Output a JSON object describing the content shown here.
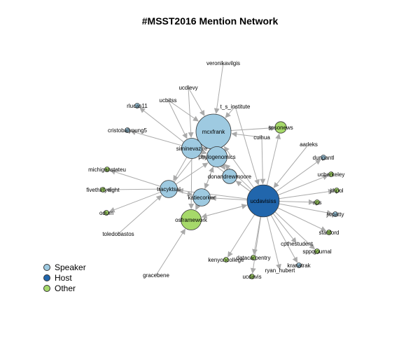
{
  "title": "#MSST2016 Mention Network",
  "colors": {
    "speaker": "#9ecae1",
    "host": "#2166ac",
    "other": "#a6d96a",
    "edge": "#aaaaaa",
    "stroke": "#333333"
  },
  "legend": [
    {
      "label": "Speaker",
      "group": "speaker"
    },
    {
      "label": "Host",
      "group": "host"
    },
    {
      "label": "Other",
      "group": "other"
    }
  ],
  "nodes": [
    {
      "id": "mcxfrank",
      "group": "speaker",
      "weight": 10
    },
    {
      "id": "ucdavisiss",
      "group": "host",
      "weight": 9
    },
    {
      "id": "siminevazire",
      "group": "speaker",
      "weight": 5
    },
    {
      "id": "phylogenomics",
      "group": "speaker",
      "weight": 5
    },
    {
      "id": "osframework",
      "group": "other",
      "weight": 5
    },
    {
      "id": "tracyktsal",
      "group": "speaker",
      "weight": 4
    },
    {
      "id": "katiecorker",
      "group": "speaker",
      "weight": 4
    },
    {
      "id": "donandrewmoore",
      "group": "speaker",
      "weight": 3
    },
    {
      "id": "spsonews",
      "group": "other",
      "weight": 2
    },
    {
      "id": "veronikavilgis",
      "group": "other",
      "weight": 0
    },
    {
      "id": "ucdlevy",
      "group": "other",
      "weight": 0
    },
    {
      "id": "ucbitss",
      "group": "other",
      "weight": 0
    },
    {
      "id": "t_s_institute",
      "group": "other",
      "weight": 0
    },
    {
      "id": "rlucas11",
      "group": "speaker",
      "weight": 1
    },
    {
      "id": "cristobalyoung5",
      "group": "speaker",
      "weight": 1
    },
    {
      "id": "cuihua",
      "group": "other",
      "weight": 0
    },
    {
      "id": "aarleks",
      "group": "other",
      "weight": 0
    },
    {
      "id": "dunpantl",
      "group": "speaker",
      "weight": 1
    },
    {
      "id": "michiganstateu",
      "group": "other",
      "weight": 1
    },
    {
      "id": "ucberkeley",
      "group": "other",
      "weight": 1
    },
    {
      "id": "fivethirtyeight",
      "group": "other",
      "weight": 1
    },
    {
      "id": "jthpol",
      "group": "other",
      "weight": 1
    },
    {
      "id": "odum",
      "group": "other",
      "weight": 1
    },
    {
      "id": "aps",
      "group": "other",
      "weight": 1
    },
    {
      "id": "jwpatty",
      "group": "speaker",
      "weight": 1
    },
    {
      "id": "toledobastos",
      "group": "other",
      "weight": 0
    },
    {
      "id": "stanford",
      "group": "other",
      "weight": 1
    },
    {
      "id": "cpthestudent",
      "group": "other",
      "weight": 0
    },
    {
      "id": "sppqjournal",
      "group": "other",
      "weight": 1
    },
    {
      "id": "datacarpentry",
      "group": "other",
      "weight": 1
    },
    {
      "id": "kenyoncollege",
      "group": "other",
      "weight": 1
    },
    {
      "id": "kranatrak",
      "group": "speaker",
      "weight": 1
    },
    {
      "id": "ryan_hubert",
      "group": "other",
      "weight": 0
    },
    {
      "id": "gracebene",
      "group": "other",
      "weight": 0
    },
    {
      "id": "ucdavis",
      "group": "other",
      "weight": 1
    }
  ],
  "edges": [
    [
      "ucdavisiss",
      "mcxfrank"
    ],
    [
      "ucdavisiss",
      "siminevazire"
    ],
    [
      "ucdavisiss",
      "phylogenomics"
    ],
    [
      "ucdavisiss",
      "tracyktsal"
    ],
    [
      "ucdavisiss",
      "katiecorker"
    ],
    [
      "ucdavisiss",
      "donandrewmoore"
    ],
    [
      "ucdavisiss",
      "osframework"
    ],
    [
      "ucdavisiss",
      "spsonews"
    ],
    [
      "ucdavisiss",
      "dunpantl"
    ],
    [
      "ucdavisiss",
      "ucberkeley"
    ],
    [
      "ucdavisiss",
      "jthpol"
    ],
    [
      "ucdavisiss",
      "aps"
    ],
    [
      "ucdavisiss",
      "jwpatty"
    ],
    [
      "ucdavisiss",
      "stanford"
    ],
    [
      "ucdavisiss",
      "sppqjournal"
    ],
    [
      "ucdavisiss",
      "kranatrak"
    ],
    [
      "ucdavisiss",
      "ucdavis"
    ],
    [
      "ucdavisiss",
      "datacarpentry"
    ],
    [
      "ucdavisiss",
      "kenyoncollege"
    ],
    [
      "ucdavisiss",
      "cpthestudent"
    ],
    [
      "ucdavisiss",
      "ryan_hubert"
    ],
    [
      "cuihua",
      "ucdavisiss"
    ],
    [
      "aarleks",
      "ucdavisiss"
    ],
    [
      "t_s_institute",
      "ucdavisiss"
    ],
    [
      "ucdlevy",
      "mcxfrank"
    ],
    [
      "ucdlevy",
      "siminevazire"
    ],
    [
      "ucbitss",
      "mcxfrank"
    ],
    [
      "ucbitss",
      "siminevazire"
    ],
    [
      "veronikavilgis",
      "mcxfrank"
    ],
    [
      "t_s_institute",
      "mcxfrank"
    ],
    [
      "cuihua",
      "mcxfrank"
    ],
    [
      "siminevazire",
      "rlucas11"
    ],
    [
      "siminevazire",
      "cristobalyoung5"
    ],
    [
      "siminevazire",
      "mcxfrank"
    ],
    [
      "siminevazire",
      "phylogenomics"
    ],
    [
      "siminevazire",
      "tracyktsal"
    ],
    [
      "siminevazire",
      "osframework"
    ],
    [
      "tracyktsal",
      "michiganstateu"
    ],
    [
      "tracyktsal",
      "fivethirtyeight"
    ],
    [
      "tracyktsal",
      "odum"
    ],
    [
      "tracyktsal",
      "phylogenomics"
    ],
    [
      "tracyktsal",
      "katiecorker"
    ],
    [
      "tracyktsal",
      "mcxfrank"
    ],
    [
      "toledobastos",
      "tracyktsal"
    ],
    [
      "phylogenomics",
      "donandrewmoore"
    ],
    [
      "phylogenomics",
      "katiecorker"
    ],
    [
      "katiecorker",
      "osframework"
    ],
    [
      "katiecorker",
      "phylogenomics"
    ],
    [
      "gracebene",
      "osframework"
    ],
    [
      "mcxfrank",
      "spsonews"
    ],
    [
      "mcxfrank",
      "phylogenomics"
    ],
    [
      "osframework",
      "ucdavisiss"
    ]
  ]
}
